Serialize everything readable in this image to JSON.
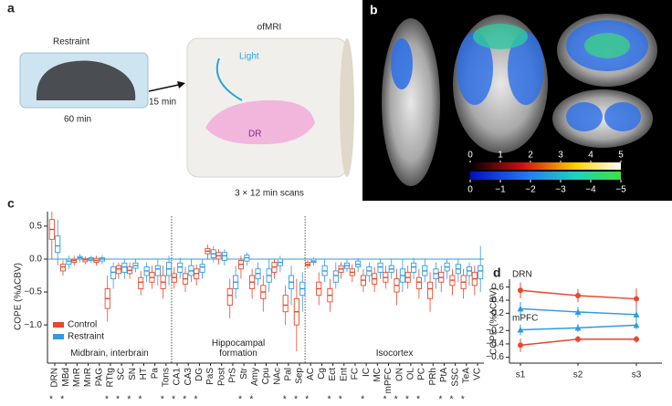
{
  "panels": {
    "a": {
      "label": "a",
      "restraint": "Restraint",
      "duration": "60 min",
      "delay": "15 min",
      "scanner": "ofMRI",
      "light": "Light",
      "region": "DR",
      "scans": "3 × 12 min scans"
    },
    "b": {
      "label": "b",
      "colorbars": [
        {
          "lim": [
            0,
            5
          ],
          "ticks": [
            0,
            1,
            2,
            3,
            4,
            5
          ]
        },
        {
          "lim": [
            0,
            -5
          ],
          "ticks": [
            0,
            {
              "value": -1,
              "label": "−1"
            },
            {
              "value": -2,
              "label": "−2"
            },
            {
              "value": -3,
              "label": "−3"
            },
            {
              "value": -4,
              "label": "−4"
            },
            {
              "value": -5,
              "label": "−5"
            }
          ]
        }
      ]
    }
  },
  "chart_data": [
    {
      "type": "box",
      "panel_label": "c",
      "ylabel": "COPE (%ΔCBV)",
      "ylim": [
        -1.58,
        0.72
      ],
      "yticks": [
        0.5,
        {
          "value": 0,
          "label": "0.0"
        },
        {
          "value": -0.5,
          "label": "−0.5"
        },
        {
          "value": -1,
          "label": "−1.0"
        }
      ],
      "zero_line": true,
      "legend": "lower left",
      "categories": [
        "DRN",
        "MBd",
        "MnR",
        "MnR",
        "PAG",
        "RTtg",
        "SC",
        "SN",
        "HT",
        "Pa",
        "Tons",
        "CA1",
        "CA3",
        "DG",
        "PaS",
        "Post",
        "PrS",
        "Str",
        "Amy",
        "Cpu",
        "NAc",
        "Pal",
        "Sep",
        "AC",
        "Cg",
        "Ect",
        "Ent",
        "FC",
        "IC",
        "MC",
        "mPFC",
        "ON",
        "OL",
        "PC",
        "PRh",
        "PtA",
        "SSC",
        "TeA",
        "VC"
      ],
      "significance": [
        "*",
        "*",
        null,
        null,
        null,
        "*",
        "*",
        "*",
        "*",
        null,
        "*",
        "*",
        "*",
        "*",
        null,
        null,
        null,
        "*",
        "*",
        null,
        null,
        "*",
        "*",
        "*",
        null,
        "*",
        "*",
        null,
        "*",
        null,
        "*",
        "*",
        "*",
        "*",
        null,
        "*",
        "*",
        "*",
        null
      ],
      "groups": [
        {
          "label": "Midbrain, interbrain"
        },
        {
          "label": "Hippocampal formation"
        },
        {
          "label": "Isocortex"
        }
      ],
      "series": [
        {
          "name": "Control",
          "color": "#e8482c",
          "boxes": [
            [
              0.0,
              0.3,
              0.45,
              0.6,
              0.72
            ],
            [
              -0.25,
              -0.18,
              -0.12,
              -0.08,
              -0.02
            ],
            [
              -0.1,
              -0.05,
              -0.02,
              0.0,
              0.05
            ],
            [
              -0.08,
              -0.04,
              -0.01,
              0.01,
              0.04
            ],
            [
              -0.1,
              -0.05,
              -0.02,
              0.01,
              0.05
            ],
            [
              -0.95,
              -0.75,
              -0.6,
              -0.45,
              -0.25
            ],
            [
              -0.3,
              -0.22,
              -0.15,
              -0.1,
              -0.05
            ],
            [
              -0.3,
              -0.22,
              -0.17,
              -0.12,
              -0.05
            ],
            [
              -0.55,
              -0.45,
              -0.35,
              -0.28,
              -0.18
            ],
            [
              -0.45,
              -0.35,
              -0.28,
              -0.2,
              -0.1
            ],
            [
              -0.6,
              -0.45,
              -0.35,
              -0.25,
              -0.1
            ],
            [
              -0.45,
              -0.35,
              -0.28,
              -0.22,
              -0.12
            ],
            [
              -0.5,
              -0.38,
              -0.3,
              -0.22,
              -0.12
            ],
            [
              -0.4,
              -0.3,
              -0.22,
              -0.15,
              -0.08
            ],
            [
              0.0,
              0.08,
              0.12,
              0.16,
              0.22
            ],
            [
              -0.08,
              0.0,
              0.05,
              0.1,
              0.15
            ],
            [
              -0.9,
              -0.7,
              -0.55,
              -0.45,
              -0.3
            ],
            [
              -0.3,
              -0.15,
              -0.08,
              -0.02,
              0.05
            ],
            [
              -0.6,
              -0.45,
              -0.35,
              -0.25,
              -0.15
            ],
            [
              -0.8,
              -0.6,
              -0.5,
              -0.4,
              -0.25
            ],
            [
              -0.3,
              -0.2,
              -0.12,
              -0.05,
              0.0
            ],
            [
              -1.0,
              -0.8,
              -0.7,
              -0.55,
              -0.4
            ],
            [
              -1.4,
              -1.0,
              -0.8,
              -0.6,
              -0.3
            ],
            [
              -0.15,
              -0.1,
              -0.08,
              -0.05,
              -0.02
            ],
            [
              -0.7,
              -0.55,
              -0.45,
              -0.35,
              -0.2
            ],
            [
              -0.8,
              -0.65,
              -0.55,
              -0.45,
              -0.3
            ],
            [
              -0.3,
              -0.2,
              -0.15,
              -0.1,
              -0.05
            ],
            [
              -0.35,
              -0.25,
              -0.2,
              -0.15,
              -0.08
            ],
            [
              -0.5,
              -0.4,
              -0.32,
              -0.25,
              -0.15
            ],
            [
              -0.5,
              -0.38,
              -0.3,
              -0.22,
              -0.12
            ],
            [
              -0.45,
              -0.35,
              -0.28,
              -0.2,
              -0.1
            ],
            [
              -0.7,
              -0.5,
              -0.4,
              -0.3,
              -0.15
            ],
            [
              -0.45,
              -0.35,
              -0.28,
              -0.2,
              -0.1
            ],
            [
              -0.6,
              -0.45,
              -0.35,
              -0.28,
              -0.15
            ],
            [
              -0.8,
              -0.6,
              -0.45,
              -0.35,
              -0.2
            ],
            [
              -0.5,
              -0.35,
              -0.28,
              -0.2,
              -0.1
            ],
            [
              -0.55,
              -0.4,
              -0.32,
              -0.25,
              -0.15
            ],
            [
              -0.6,
              -0.45,
              -0.35,
              -0.25,
              -0.15
            ],
            [
              -0.55,
              -0.4,
              -0.3,
              -0.2,
              -0.1
            ]
          ]
        },
        {
          "name": "Restraint",
          "color": "#2f9be0",
          "boxes": [
            [
              -0.1,
              0.1,
              0.2,
              0.35,
              0.6
            ],
            [
              -0.15,
              -0.08,
              -0.03,
              0.0,
              0.05
            ],
            [
              -0.05,
              0.0,
              0.02,
              0.04,
              0.08
            ],
            [
              -0.06,
              -0.02,
              0.0,
              0.02,
              0.05
            ],
            [
              -0.08,
              -0.03,
              0.0,
              0.02,
              0.06
            ],
            [
              -0.45,
              -0.3,
              -0.2,
              -0.12,
              -0.05
            ],
            [
              -0.3,
              -0.2,
              -0.12,
              -0.06,
              0.0
            ],
            [
              -0.2,
              -0.14,
              -0.1,
              -0.06,
              0.0
            ],
            [
              -0.35,
              -0.25,
              -0.18,
              -0.12,
              -0.05
            ],
            [
              -0.4,
              -0.25,
              -0.15,
              -0.1,
              0.0
            ],
            [
              -0.4,
              -0.25,
              -0.15,
              -0.05,
              0.05
            ],
            [
              -0.3,
              -0.2,
              -0.12,
              -0.06,
              0.02
            ],
            [
              -0.35,
              -0.25,
              -0.18,
              -0.1,
              0.0
            ],
            [
              -0.3,
              -0.2,
              -0.12,
              -0.08,
              0.0
            ],
            [
              -0.05,
              0.02,
              0.08,
              0.14,
              0.2
            ],
            [
              -0.1,
              -0.02,
              0.05,
              0.1,
              0.15
            ],
            [
              -0.6,
              -0.45,
              -0.35,
              -0.25,
              -0.1
            ],
            [
              -0.1,
              -0.03,
              0.02,
              0.06,
              0.1
            ],
            [
              -0.4,
              -0.3,
              -0.22,
              -0.15,
              -0.05
            ],
            [
              -0.5,
              -0.35,
              -0.25,
              -0.15,
              0.0
            ],
            [
              -0.2,
              -0.1,
              -0.05,
              0.0,
              0.05
            ],
            [
              -0.7,
              -0.45,
              -0.35,
              -0.25,
              -0.1
            ],
            [
              -0.8,
              -0.55,
              -0.45,
              -0.35,
              -0.2
            ],
            [
              -0.1,
              -0.05,
              -0.03,
              0.0,
              0.03
            ],
            [
              -0.35,
              -0.25,
              -0.18,
              -0.1,
              0.0
            ],
            [
              -0.45,
              -0.35,
              -0.25,
              -0.18,
              -0.05
            ],
            [
              -0.2,
              -0.14,
              -0.1,
              -0.06,
              0.0
            ],
            [
              -0.2,
              -0.12,
              -0.08,
              -0.03,
              0.02
            ],
            [
              -0.35,
              -0.25,
              -0.18,
              -0.12,
              -0.05
            ],
            [
              -0.3,
              -0.2,
              -0.12,
              -0.06,
              0.0
            ],
            [
              -0.3,
              -0.2,
              -0.15,
              -0.1,
              0.0
            ],
            [
              -0.5,
              -0.35,
              -0.25,
              -0.15,
              0.0
            ],
            [
              -0.3,
              -0.2,
              -0.12,
              -0.06,
              0.02
            ],
            [
              -0.35,
              -0.25,
              -0.18,
              -0.1,
              0.0
            ],
            [
              -0.45,
              -0.3,
              -0.22,
              -0.15,
              -0.05
            ],
            [
              -0.3,
              -0.18,
              -0.12,
              -0.06,
              0.0
            ],
            [
              -0.35,
              -0.22,
              -0.15,
              -0.08,
              0.0
            ],
            [
              -0.4,
              -0.25,
              -0.18,
              -0.12,
              -0.05
            ],
            [
              -0.5,
              -0.3,
              -0.18,
              -0.1,
              0.2
            ]
          ]
        }
      ]
    },
    {
      "type": "line",
      "panel_label": "d",
      "ylabel": "COPE (%ΔCBV)",
      "categories": [
        "s1",
        "s2",
        "s3"
      ],
      "subplots": [
        {
          "title": "DRN",
          "ylim": [
            0.08,
            0.72
          ],
          "yticks": [
            0.6,
            0.4,
            0.2
          ],
          "series": [
            {
              "color": "#e8482c",
              "values": [
                0.55,
                0.47,
                0.42
              ],
              "errors": [
                0.12,
                0.1,
                0.16
              ]
            },
            {
              "color": "#2f9be0",
              "values": [
                0.27,
                0.22,
                0.18
              ],
              "errors": [
                0.1,
                0.08,
                0.12
              ]
            }
          ]
        },
        {
          "title": "mPFC",
          "ylim": [
            -0.66,
            -0.06
          ],
          "yticks": [
            {
              "value": -0.2,
              "label": "−0.2"
            },
            {
              "value": -0.4,
              "label": "−0.4"
            },
            {
              "value": -0.6,
              "label": "−0.6"
            }
          ],
          "series": [
            {
              "color": "#e8482c",
              "values": [
                -0.42,
                -0.33,
                -0.33
              ],
              "errors": [
                0.1,
                0.05,
                0.05
              ]
            },
            {
              "color": "#2f9be0",
              "values": [
                -0.19,
                -0.16,
                -0.12
              ],
              "errors": [
                0.08,
                0.06,
                0.06
              ]
            }
          ]
        }
      ]
    }
  ]
}
